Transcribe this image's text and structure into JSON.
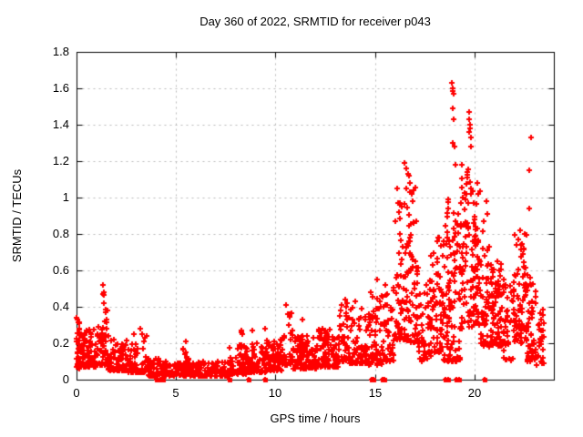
{
  "window": {
    "kind": "gnuplot-style scatter plot image",
    "background_color": "#ffffff"
  },
  "chart_data": {
    "type": "scatter",
    "title": "Day 360 of 2022, SRMTID for receiver p043",
    "xlabel": "GPS time / hours",
    "ylabel": "SRMTID / TECUs",
    "xlim": [
      0,
      24
    ],
    "ylim": [
      0,
      1.8
    ],
    "x_ticks": [
      0,
      5,
      10,
      15,
      20
    ],
    "x_tick_labels": [
      "0",
      "5",
      "10",
      "15",
      "20"
    ],
    "y_ticks": [
      0,
      0.2,
      0.4,
      0.6,
      0.8,
      1.0,
      1.2,
      1.4,
      1.6,
      1.8
    ],
    "y_tick_labels": [
      "0",
      "0.2",
      "0.4",
      "0.6",
      "0.8",
      "1",
      "1.2",
      "1.4",
      "1.6",
      "1.8"
    ],
    "grid": true,
    "grid_style": "dashed",
    "legend": "none",
    "series_name": "SRMTID",
    "marker": {
      "shape": "plus",
      "size": 7,
      "stroke": 2,
      "color": "#ff0000"
    },
    "colors": {
      "marker": "#ff0000",
      "grid": "#b8b8b8",
      "axis": "#000000",
      "text": "#000000"
    },
    "data_time_span_hours": [
      0,
      23.5
    ],
    "density_segments_encoding": "Dense cloud of ~2000 points estimated from the plot, encoded as [tStart,tEnd,count,yMin,yMax,lowBiasExponent]; y values cluster toward yMin for larger exponents.",
    "density_segments": [
      [
        0.0,
        0.15,
        25,
        0.05,
        0.32,
        1.2
      ],
      [
        0.1,
        1.0,
        95,
        0.07,
        0.28,
        2.2
      ],
      [
        1.0,
        1.6,
        45,
        0.08,
        0.38,
        2.0
      ],
      [
        1.25,
        1.5,
        14,
        0.2,
        0.5,
        1.4
      ],
      [
        1.6,
        2.6,
        85,
        0.05,
        0.22,
        2.0
      ],
      [
        2.6,
        3.6,
        70,
        0.04,
        0.26,
        2.2
      ],
      [
        3.6,
        4.4,
        55,
        0.02,
        0.12,
        2.0
      ],
      [
        4.4,
        5.3,
        60,
        0.02,
        0.1,
        2.0
      ],
      [
        5.3,
        5.7,
        16,
        0.06,
        0.2,
        1.6
      ],
      [
        5.3,
        7.6,
        130,
        0.02,
        0.1,
        2.0
      ],
      [
        7.6,
        8.6,
        70,
        0.03,
        0.2,
        2.4
      ],
      [
        8.2,
        8.5,
        10,
        0.1,
        0.26,
        1.4
      ],
      [
        8.6,
        9.6,
        70,
        0.04,
        0.2,
        2.2
      ],
      [
        9.35,
        9.6,
        8,
        0.1,
        0.27,
        1.4
      ],
      [
        9.6,
        10.4,
        70,
        0.05,
        0.22,
        2.0
      ],
      [
        10.4,
        10.9,
        32,
        0.08,
        0.38,
        2.4
      ],
      [
        10.9,
        12.1,
        95,
        0.06,
        0.24,
        2.0
      ],
      [
        11.2,
        11.5,
        10,
        0.12,
        0.32,
        1.5
      ],
      [
        12.1,
        13.2,
        85,
        0.07,
        0.28,
        2.0
      ],
      [
        13.2,
        13.7,
        40,
        0.1,
        0.42,
        2.2
      ],
      [
        13.7,
        14.6,
        75,
        0.09,
        0.4,
        2.2
      ],
      [
        14.6,
        15.35,
        60,
        0.08,
        0.48,
        2.0
      ],
      [
        15.35,
        16.0,
        55,
        0.1,
        0.52,
        2.0
      ],
      [
        16.0,
        16.55,
        55,
        0.22,
        1.05,
        2.0
      ],
      [
        16.55,
        17.2,
        75,
        0.2,
        1.18,
        1.8
      ],
      [
        17.2,
        17.9,
        60,
        0.1,
        0.6,
        2.0
      ],
      [
        17.9,
        18.45,
        60,
        0.15,
        0.78,
        1.8
      ],
      [
        18.45,
        19.3,
        115,
        0.1,
        1.0,
        1.8
      ],
      [
        19.3,
        19.9,
        70,
        0.28,
        1.18,
        1.5
      ],
      [
        19.9,
        20.3,
        60,
        0.3,
        1.08,
        1.5
      ],
      [
        20.3,
        20.8,
        55,
        0.18,
        0.88,
        1.8
      ],
      [
        20.8,
        21.35,
        70,
        0.18,
        0.66,
        1.2
      ],
      [
        21.35,
        21.95,
        45,
        0.1,
        0.55,
        1.5
      ],
      [
        21.95,
        22.65,
        85,
        0.2,
        0.8,
        1.5
      ],
      [
        22.65,
        23.1,
        45,
        0.1,
        0.58,
        1.8
      ],
      [
        23.1,
        23.5,
        30,
        0.08,
        0.42,
        1.5
      ]
    ],
    "outlier_points": [
      [
        0.02,
        0.34
      ],
      [
        0.05,
        0.33
      ],
      [
        1.35,
        0.52
      ],
      [
        1.32,
        0.47
      ],
      [
        1.38,
        0.42
      ],
      [
        3.2,
        0.28
      ],
      [
        5.5,
        0.21
      ],
      [
        8.3,
        0.27
      ],
      [
        8.85,
        0.27
      ],
      [
        9.5,
        0.28
      ],
      [
        10.55,
        0.41
      ],
      [
        10.62,
        0.36
      ],
      [
        11.35,
        0.33
      ],
      [
        12.35,
        0.28
      ],
      [
        13.5,
        0.44
      ],
      [
        13.55,
        0.4
      ],
      [
        14.0,
        0.43
      ],
      [
        15.1,
        0.55
      ],
      [
        16.1,
        1.05
      ],
      [
        16.15,
        0.97
      ],
      [
        16.22,
        0.92
      ],
      [
        16.5,
        1.19
      ],
      [
        16.6,
        1.16
      ],
      [
        16.65,
        1.13
      ],
      [
        16.72,
        1.12
      ],
      [
        16.78,
        1.08
      ],
      [
        16.58,
        1.05
      ],
      [
        16.85,
        1.02
      ],
      [
        16.9,
        0.98
      ],
      [
        17.8,
        0.68
      ],
      [
        18.2,
        0.78
      ],
      [
        18.88,
        1.63
      ],
      [
        18.9,
        1.6
      ],
      [
        18.92,
        1.585
      ],
      [
        18.95,
        1.57
      ],
      [
        18.93,
        1.49
      ],
      [
        18.97,
        1.43
      ],
      [
        18.9,
        1.3
      ],
      [
        19.0,
        1.28
      ],
      [
        19.05,
        1.18
      ],
      [
        19.72,
        1.47
      ],
      [
        19.75,
        1.43
      ],
      [
        19.78,
        1.4
      ],
      [
        19.8,
        1.38
      ],
      [
        19.76,
        1.36
      ],
      [
        19.82,
        1.33
      ],
      [
        19.85,
        1.28
      ],
      [
        20.6,
        0.98
      ],
      [
        20.65,
        0.91
      ],
      [
        22.2,
        0.77
      ],
      [
        22.3,
        0.82
      ],
      [
        22.76,
        0.94
      ],
      [
        22.78,
        1.15
      ],
      [
        22.85,
        1.33
      ]
    ],
    "zero_clamped_hours": [
      4.05,
      4.2,
      4.35,
      7.7,
      8.65,
      9.5,
      14.85,
      14.95,
      15.4,
      15.5,
      18.55,
      18.7,
      19.1,
      19.25,
      20.5
    ]
  }
}
